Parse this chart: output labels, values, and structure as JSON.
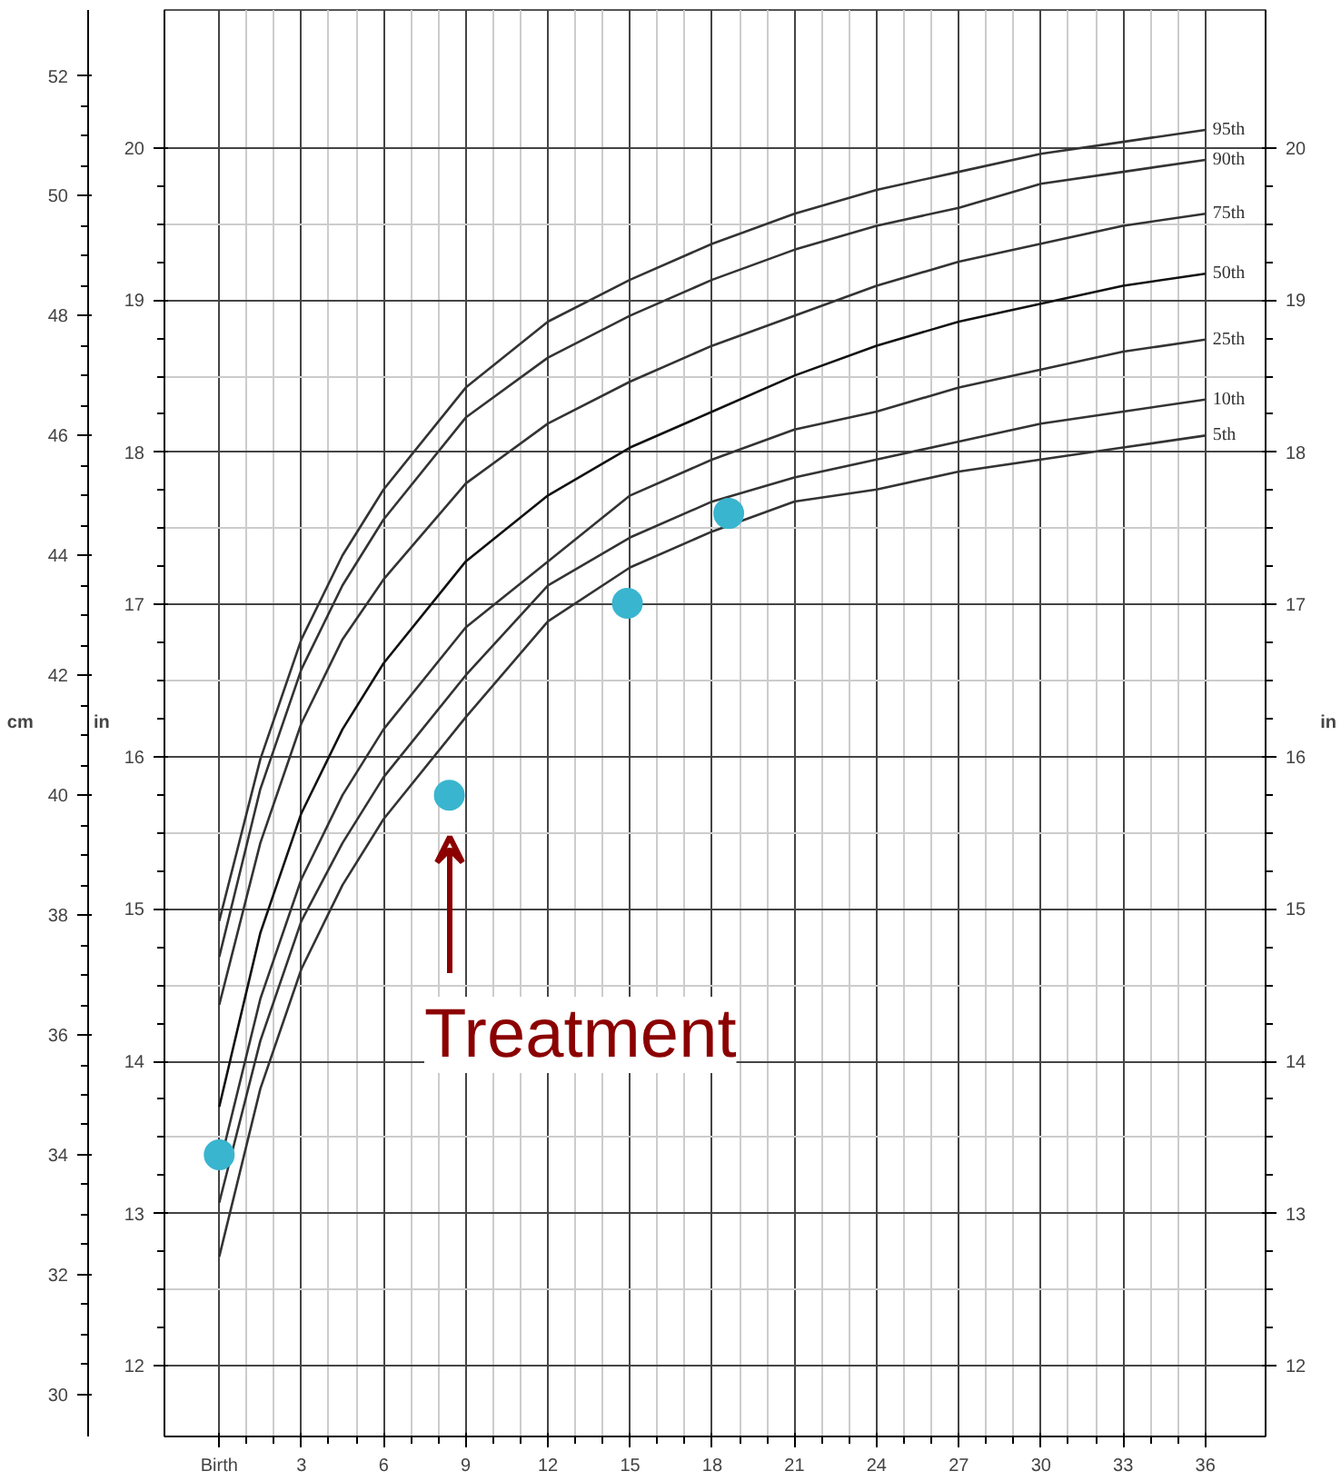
{
  "chart_data": {
    "type": "line",
    "x": [
      0,
      1.5,
      3,
      4.5,
      6,
      9,
      12,
      15,
      18,
      21,
      24,
      27,
      30,
      33,
      36
    ],
    "xlim": [
      -2,
      38.2
    ],
    "xticks": [
      {
        "value": 0,
        "label": "Birth"
      },
      3,
      6,
      9,
      12,
      15,
      18,
      21,
      24,
      27,
      30,
      33,
      36
    ],
    "ylim": [
      29.3,
      53.1
    ],
    "yticks": [
      30,
      32,
      34,
      36,
      38,
      40,
      42,
      44,
      46,
      48,
      50,
      52
    ],
    "ylabel": "cm",
    "y2lim": [
      11.535,
      20.906
    ],
    "y2ticks": [
      12,
      13,
      14,
      15,
      16,
      17,
      18,
      19,
      20
    ],
    "y2label": "in",
    "y3lim": [
      11.535,
      20.906
    ],
    "y3ticks": [
      12,
      13,
      14,
      15,
      16,
      17,
      18,
      19,
      20
    ],
    "y3label": "in",
    "grid": true,
    "series": [
      {
        "name": "95th",
        "color": "#333333",
        "values": [
          37.9,
          40.6,
          42.6,
          44.0,
          45.1,
          46.8,
          47.9,
          48.6,
          49.2,
          49.7,
          50.1,
          50.4,
          50.7,
          50.9,
          51.1
        ]
      },
      {
        "name": "90th",
        "color": "#333333",
        "values": [
          37.3,
          40.1,
          42.1,
          43.5,
          44.6,
          46.3,
          47.3,
          48.0,
          48.6,
          49.1,
          49.5,
          49.8,
          50.2,
          50.4,
          50.6
        ]
      },
      {
        "name": "75th",
        "color": "#333333",
        "values": [
          36.5,
          39.2,
          41.2,
          42.6,
          43.6,
          45.2,
          46.2,
          46.9,
          47.5,
          48.0,
          48.5,
          48.9,
          49.2,
          49.5,
          49.7
        ]
      },
      {
        "name": "50th",
        "color": "#111111",
        "values": [
          34.8,
          37.7,
          39.7,
          41.1,
          42.2,
          43.9,
          45.0,
          45.8,
          46.4,
          47.0,
          47.5,
          47.9,
          48.2,
          48.5,
          48.7
        ]
      },
      {
        "name": "25th",
        "color": "#333333",
        "values": [
          33.8,
          36.6,
          38.6,
          40.0,
          41.1,
          42.8,
          43.9,
          45.0,
          45.6,
          46.1,
          46.4,
          46.8,
          47.1,
          47.4,
          47.6
        ]
      },
      {
        "name": "10th",
        "color": "#333333",
        "values": [
          33.2,
          35.9,
          37.9,
          39.2,
          40.3,
          42.0,
          43.5,
          44.3,
          44.9,
          45.3,
          45.6,
          45.9,
          46.2,
          46.4,
          46.6
        ]
      },
      {
        "name": "5th",
        "color": "#333333",
        "values": [
          32.3,
          35.1,
          37.1,
          38.5,
          39.6,
          41.3,
          42.9,
          43.8,
          44.4,
          44.9,
          45.1,
          45.4,
          45.6,
          45.8,
          46.0
        ]
      },
      {
        "type": "scatter",
        "color": "#3ab5cf",
        "marker": "circle",
        "x": [
          0,
          8.4,
          14.9,
          18.6
        ],
        "values": [
          34.0,
          40.0,
          43.2,
          44.7
        ]
      }
    ],
    "annotations": [
      "Treatment"
    ]
  }
}
